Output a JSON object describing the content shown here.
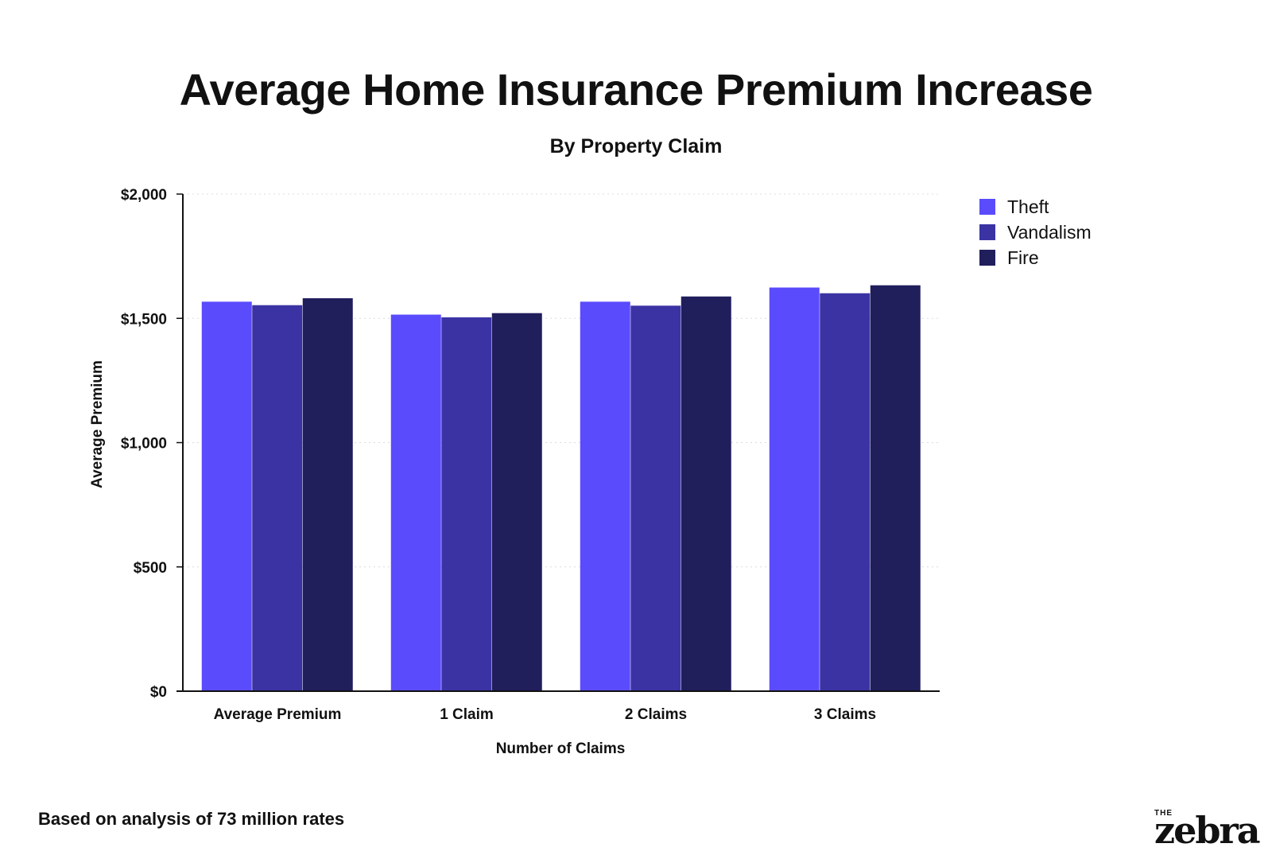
{
  "title": "Average Home Insurance Premium Increase",
  "subtitle": "By Property Claim",
  "footnote": "Based on analysis of 73 million rates",
  "logo": {
    "top": "THE",
    "word": "zebra"
  },
  "chart_data": {
    "type": "bar",
    "title": "Average Home Insurance Premium Increase",
    "subtitle": "By Property Claim",
    "xlabel": "Number of Claims",
    "ylabel": "Average Premium",
    "categories": [
      "Average Premium",
      "1 Claim",
      "2 Claims",
      "3 Claims"
    ],
    "series": [
      {
        "name": "Theft",
        "color": "#5a4cfc",
        "values": [
          1567,
          1515,
          1567,
          1624
        ]
      },
      {
        "name": "Vandalism",
        "color": "#3b33a4",
        "values": [
          1553,
          1504,
          1551,
          1601
        ]
      },
      {
        "name": "Fire",
        "color": "#211e5c",
        "values": [
          1581,
          1521,
          1588,
          1633
        ]
      }
    ],
    "ylim": [
      0,
      2000
    ],
    "yticks": [
      0,
      500,
      1000,
      1500,
      2000
    ],
    "ytick_labels": [
      "$0",
      "$500",
      "$1,000",
      "$1,500",
      "$2,000"
    ],
    "grid": "horizontal dotted",
    "legend_position": "top-right"
  }
}
